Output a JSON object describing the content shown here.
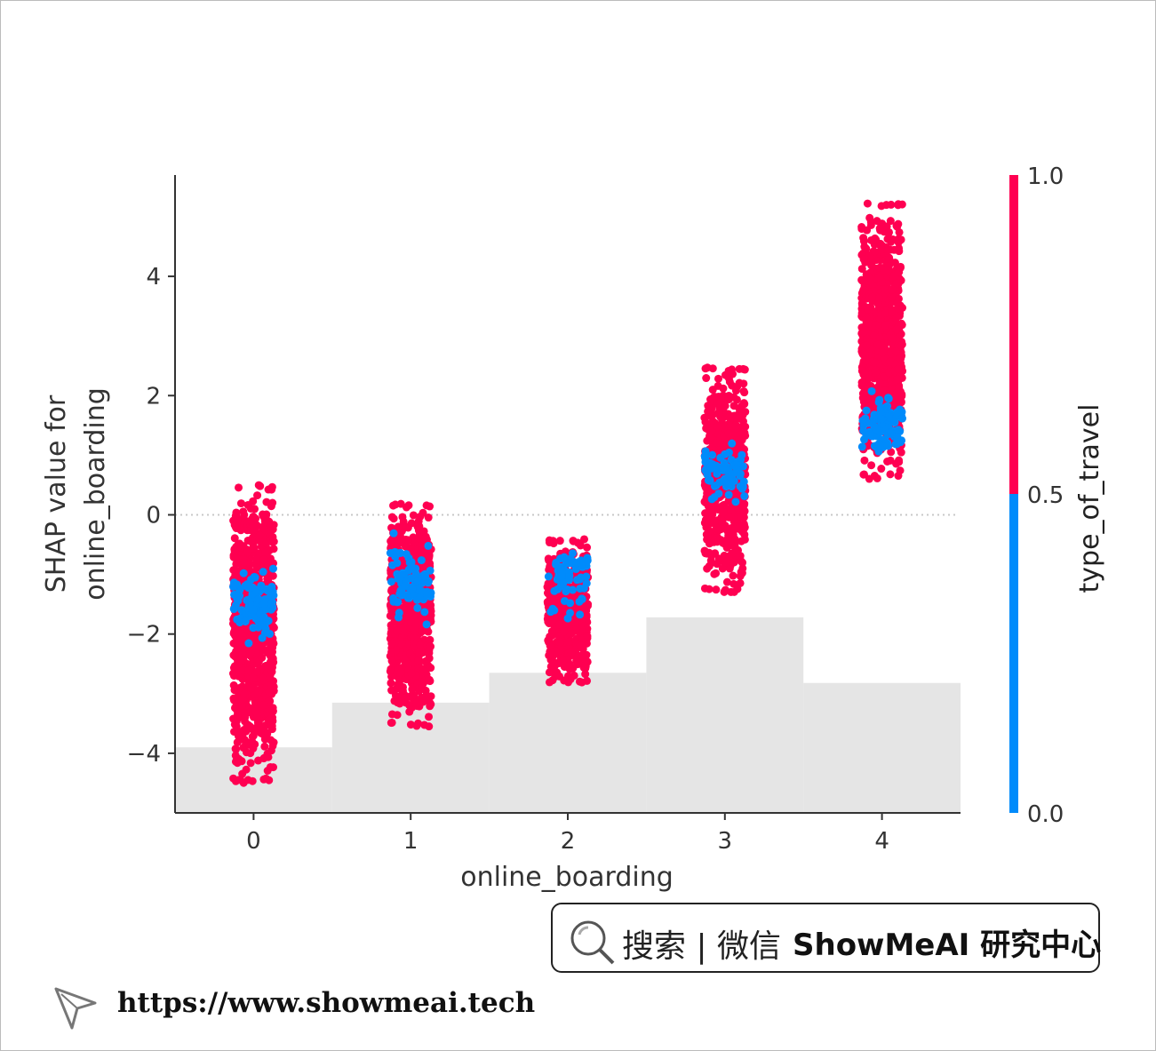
{
  "chart_data": {
    "type": "scatter",
    "xlabel": "online_boarding",
    "ylabel_lines": [
      "SHAP value for",
      "online_boarding"
    ],
    "x_ticks": [
      "0",
      "1",
      "2",
      "3",
      "4"
    ],
    "y_ticks": [
      "4",
      "2",
      "0",
      "−2",
      "−4"
    ],
    "y_tick_values": [
      4,
      2,
      0,
      -2,
      -4
    ],
    "xlim": [
      -0.5,
      4.5
    ],
    "ylim": [
      -5,
      5.7
    ],
    "zero_line": "dotted",
    "colorbar": {
      "label": "type_of_travel",
      "ticks": [
        "1.0",
        "0.5",
        "0.0"
      ],
      "tick_values": [
        1.0,
        0.5,
        0.0
      ],
      "high_color": "#ff0051",
      "low_color": "#008bfb"
    },
    "histogram_steps": [
      {
        "x": 0,
        "top": -3.9
      },
      {
        "x": 1,
        "top": -3.15
      },
      {
        "x": 2,
        "top": -2.65
      },
      {
        "x": 3,
        "top": -1.72
      },
      {
        "x": 4,
        "top": -2.82
      }
    ],
    "series": [
      {
        "x": 0,
        "y_min": -4.5,
        "y_max": 0.5,
        "blue_center": -1.5,
        "blue_spread": 0.5,
        "count": 900
      },
      {
        "x": 1,
        "y_min": -3.55,
        "y_max": 0.2,
        "blue_center": -1.2,
        "blue_spread": 0.6,
        "count": 700
      },
      {
        "x": 2,
        "y_min": -2.85,
        "y_max": -0.4,
        "blue_center": -1.1,
        "blue_spread": 0.5,
        "count": 500
      },
      {
        "x": 3,
        "y_min": -1.3,
        "y_max": 2.5,
        "blue_center": 0.7,
        "blue_spread": 0.4,
        "count": 600
      },
      {
        "x": 4,
        "y_min": 0.6,
        "y_max": 5.25,
        "blue_center": 1.5,
        "blue_spread": 0.4,
        "count": 800
      }
    ]
  },
  "watermark": {
    "search_label": "搜索 | 微信",
    "brand": "ShowMeAI 研究中心",
    "url": "https://www.showmeai.tech"
  },
  "colors": {
    "red": "#ff0051",
    "blue": "#008bfb",
    "hist": "#e5e5e5",
    "axis": "#333333"
  }
}
